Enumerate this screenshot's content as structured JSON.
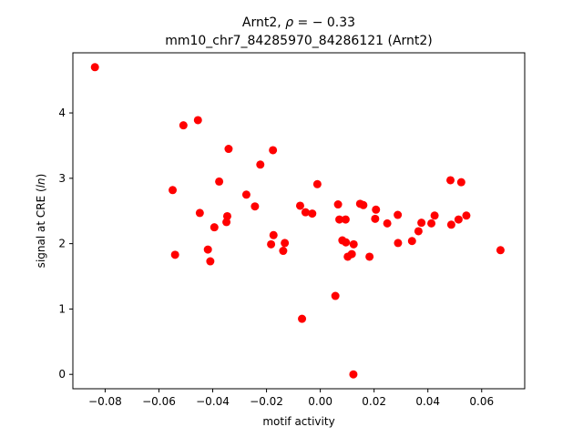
{
  "chart_data": {
    "type": "scatter",
    "title_line1": "Arnt2, ρ = − 0.33",
    "title_line2": "mm10_chr7_84285970_84286121 (Arnt2)",
    "xlabel": "motif activity",
    "ylabel": "signal at CRE (ln)",
    "xlim": [
      -0.092,
      0.076
    ],
    "ylim": [
      -0.22,
      4.92
    ],
    "xticks": [
      -0.08,
      -0.06,
      -0.04,
      -0.02,
      0.0,
      0.02,
      0.04,
      0.06
    ],
    "xtick_labels": [
      "−0.08",
      "−0.06",
      "−0.04",
      "−0.02",
      "0.00",
      "0.02",
      "0.04",
      "0.06"
    ],
    "yticks": [
      0,
      1,
      2,
      3,
      4
    ],
    "ytick_labels": [
      "0",
      "1",
      "2",
      "3",
      "4"
    ],
    "marker_color": "#ff0000",
    "grid": false,
    "legend": "none",
    "points": [
      {
        "x": -0.0838,
        "y": 4.7
      },
      {
        "x": -0.0509,
        "y": 3.81
      },
      {
        "x": -0.0455,
        "y": 3.89
      },
      {
        "x": -0.0341,
        "y": 3.45
      },
      {
        "x": -0.0176,
        "y": 3.43
      },
      {
        "x": -0.0223,
        "y": 3.21
      },
      {
        "x": -0.0376,
        "y": 2.95
      },
      {
        "x": -0.0549,
        "y": 2.82
      },
      {
        "x": -0.0275,
        "y": 2.75
      },
      {
        "x": -0.0243,
        "y": 2.57
      },
      {
        "x": -0.0448,
        "y": 2.47
      },
      {
        "x": -0.0346,
        "y": 2.42
      },
      {
        "x": -0.0349,
        "y": 2.33
      },
      {
        "x": -0.0394,
        "y": 2.25
      },
      {
        "x": -0.0174,
        "y": 2.13
      },
      {
        "x": -0.0132,
        "y": 2.01
      },
      {
        "x": -0.0183,
        "y": 1.99
      },
      {
        "x": -0.0138,
        "y": 1.89
      },
      {
        "x": -0.0418,
        "y": 1.91
      },
      {
        "x": -0.054,
        "y": 1.83
      },
      {
        "x": -0.0409,
        "y": 1.73
      },
      {
        "x": -0.0011,
        "y": 2.91
      },
      {
        "x": -0.0075,
        "y": 2.58
      },
      {
        "x": -0.0055,
        "y": 2.48
      },
      {
        "x": -0.003,
        "y": 2.46
      },
      {
        "x": 0.0066,
        "y": 2.6
      },
      {
        "x": 0.0148,
        "y": 2.61
      },
      {
        "x": 0.016,
        "y": 2.59
      },
      {
        "x": 0.0207,
        "y": 2.52
      },
      {
        "x": 0.0288,
        "y": 2.44
      },
      {
        "x": 0.0071,
        "y": 2.37
      },
      {
        "x": 0.0094,
        "y": 2.37
      },
      {
        "x": 0.0204,
        "y": 2.38
      },
      {
        "x": 0.0249,
        "y": 2.31
      },
      {
        "x": 0.0082,
        "y": 2.05
      },
      {
        "x": 0.0095,
        "y": 2.02
      },
      {
        "x": 0.0124,
        "y": 1.99
      },
      {
        "x": 0.0117,
        "y": 1.84
      },
      {
        "x": 0.0102,
        "y": 1.8
      },
      {
        "x": 0.0183,
        "y": 1.8
      },
      {
        "x": 0.0289,
        "y": 2.01
      },
      {
        "x": 0.0341,
        "y": 2.04
      },
      {
        "x": 0.0365,
        "y": 2.19
      },
      {
        "x": 0.0376,
        "y": 2.32
      },
      {
        "x": 0.0413,
        "y": 2.31
      },
      {
        "x": 0.0425,
        "y": 2.43
      },
      {
        "x": 0.0484,
        "y": 2.97
      },
      {
        "x": 0.0524,
        "y": 2.94
      },
      {
        "x": 0.0487,
        "y": 2.29
      },
      {
        "x": 0.0514,
        "y": 2.37
      },
      {
        "x": 0.0543,
        "y": 2.43
      },
      {
        "x": 0.067,
        "y": 1.9
      },
      {
        "x": 0.0056,
        "y": 1.2
      },
      {
        "x": -0.0068,
        "y": 0.85
      },
      {
        "x": 0.0123,
        "y": 0.0
      }
    ]
  }
}
